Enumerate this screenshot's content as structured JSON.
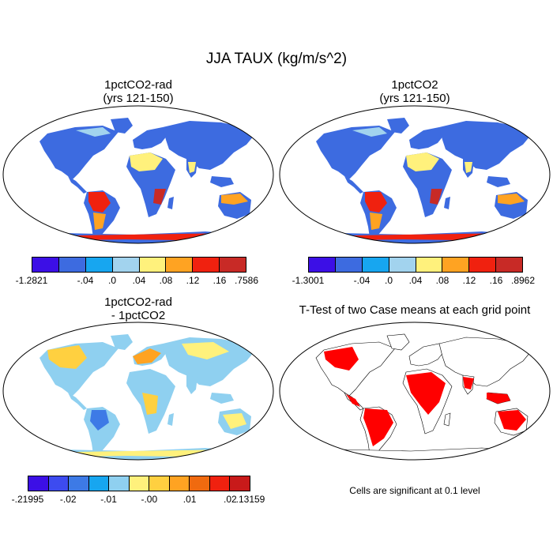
{
  "figure_title": "JJA TAUX (kg/m/s^2)",
  "panels": {
    "top_left": {
      "title_line1": "1pctCO2-rad",
      "title_line2": "(yrs 121-150)"
    },
    "top_right": {
      "title_line1": "1pctCO2",
      "title_line2": "(yrs 121-150)"
    },
    "bottom_left": {
      "title_line1": "1pctCO2-rad",
      "title_line2": "- 1pctCO2"
    },
    "bottom_right": {
      "title_line1": "T-Test of two Case means at each grid point"
    }
  },
  "colorbars": {
    "top_left": {
      "colors": [
        "#3c0fe6",
        "#3d6be0",
        "#17a6f0",
        "#a2d3ee",
        "#fff17c",
        "#ffa322",
        "#f0210f",
        "#c82a26"
      ],
      "labels": [
        "-1.2821",
        "-.04",
        ".0",
        ".04",
        ".08",
        ".12",
        ".16",
        ".7586"
      ]
    },
    "top_right": {
      "colors": [
        "#3c0fe6",
        "#3d6be0",
        "#17a6f0",
        "#a2d3ee",
        "#fff17c",
        "#ffa322",
        "#f0210f",
        "#c82a26"
      ],
      "labels": [
        "-1.3001",
        "-.04",
        ".0",
        ".04",
        ".08",
        ".12",
        ".16",
        ".8962"
      ]
    },
    "bottom_left": {
      "colors": [
        "#3c0fe6",
        "#3d4bf0",
        "#3d7ae6",
        "#17a6f0",
        "#8fd0f0",
        "#fff17c",
        "#ffd040",
        "#ffa322",
        "#f06a0f",
        "#f0210f",
        "#c81a1a"
      ],
      "labels": [
        "-.21995",
        "-.02",
        "-.01",
        "-.00",
        ".01",
        ".02",
        ".13159"
      ]
    }
  },
  "significance_note": "Cells are significant at 0.1 level",
  "colors": {
    "significant": "#ff0000",
    "coastline": "#000000"
  }
}
